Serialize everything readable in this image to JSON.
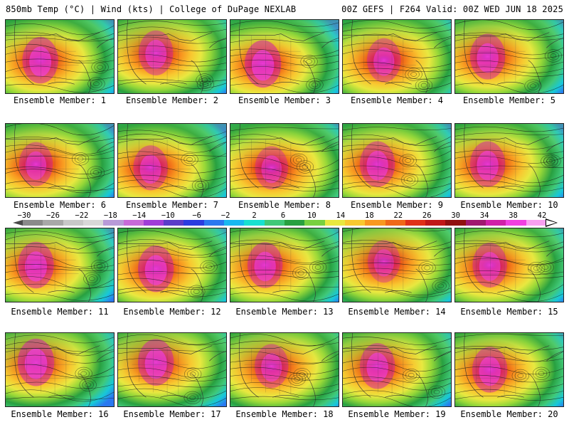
{
  "header": {
    "left": "850mb Temp (°C) | Wind (kts) | College of DuPage NEXLAB",
    "right": "00Z GEFS | F264 Valid: 00Z WED JUN 18 2025"
  },
  "panels": [
    {
      "label": "Ensemble Member: 1",
      "heat": [
        0.32,
        0.55
      ],
      "intensity": 0.95
    },
    {
      "label": "Ensemble Member: 2",
      "heat": [
        0.35,
        0.45
      ],
      "intensity": 0.85
    },
    {
      "label": "Ensemble Member: 3",
      "heat": [
        0.3,
        0.6
      ],
      "intensity": 1.0
    },
    {
      "label": "Ensemble Member: 4",
      "heat": [
        0.38,
        0.55
      ],
      "intensity": 0.8
    },
    {
      "label": "Ensemble Member: 5",
      "heat": [
        0.3,
        0.5
      ],
      "intensity": 0.9
    },
    {
      "label": "Ensemble Member: 6",
      "heat": [
        0.28,
        0.55
      ],
      "intensity": 0.8
    },
    {
      "label": "Ensemble Member: 7",
      "heat": [
        0.3,
        0.6
      ],
      "intensity": 0.85
    },
    {
      "label": "Ensemble Member: 8",
      "heat": [
        0.38,
        0.6
      ],
      "intensity": 0.75
    },
    {
      "label": "Ensemble Member: 9",
      "heat": [
        0.32,
        0.55
      ],
      "intensity": 0.9
    },
    {
      "label": "Ensemble Member: 10",
      "heat": [
        0.3,
        0.55
      ],
      "intensity": 0.9
    },
    {
      "label": "Ensemble Member: 11",
      "heat": [
        0.28,
        0.5
      ],
      "intensity": 0.95
    },
    {
      "label": "Ensemble Member: 12",
      "heat": [
        0.35,
        0.55
      ],
      "intensity": 0.95
    },
    {
      "label": "Ensemble Member: 13",
      "heat": [
        0.32,
        0.5
      ],
      "intensity": 0.9
    },
    {
      "label": "Ensemble Member: 14",
      "heat": [
        0.38,
        0.45
      ],
      "intensity": 0.7
    },
    {
      "label": "Ensemble Member: 15",
      "heat": [
        0.32,
        0.5
      ],
      "intensity": 0.85
    },
    {
      "label": "Ensemble Member: 16",
      "heat": [
        0.28,
        0.4
      ],
      "intensity": 1.0
    },
    {
      "label": "Ensemble Member: 17",
      "heat": [
        0.35,
        0.4
      ],
      "intensity": 0.95
    },
    {
      "label": "Ensemble Member: 18",
      "heat": [
        0.38,
        0.45
      ],
      "intensity": 0.8
    },
    {
      "label": "Ensemble Member: 19",
      "heat": [
        0.32,
        0.45
      ],
      "intensity": 0.9
    },
    {
      "label": "Ensemble Member: 20",
      "heat": [
        0.32,
        0.5
      ],
      "intensity": 0.9
    }
  ],
  "colorbar": {
    "ticks": [
      "−30",
      "−26",
      "−22",
      "−18",
      "−14",
      "−10",
      "−6",
      "−2",
      "2",
      "6",
      "10",
      "14",
      "18",
      "22",
      "26",
      "30",
      "34",
      "38",
      "42"
    ],
    "colors": [
      "#8a8a8a",
      "#a8a8a8",
      "#c8c8c8",
      "#d8d8d8",
      "#b89ad8",
      "#c86ad8",
      "#a03cd8",
      "#5a3cc8",
      "#2a3ce0",
      "#2a78f0",
      "#18b8f0",
      "#18e0d0",
      "#40c878",
      "#28a040",
      "#78d040",
      "#e8e840",
      "#f8c830",
      "#f89820",
      "#f06818",
      "#e03018",
      "#c01818",
      "#901010",
      "#a01870",
      "#d020a8",
      "#f040e0",
      "#f8a0f0"
    ]
  }
}
